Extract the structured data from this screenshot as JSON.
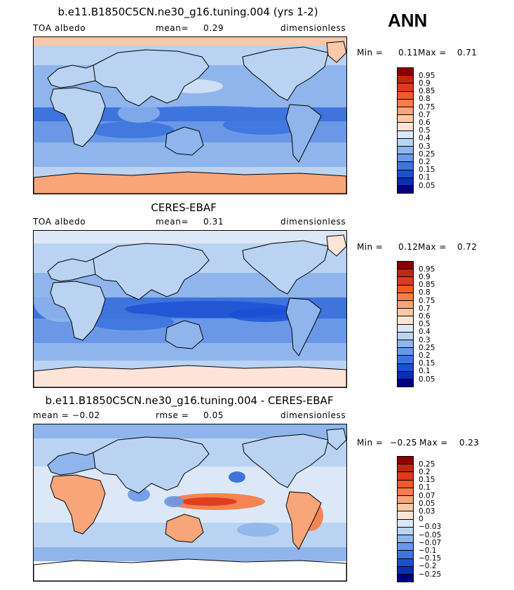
{
  "header": {
    "season": "ANN"
  },
  "panels": [
    {
      "title": "b.e11.B1850C5CN.ne30_g16.tuning.004 (yrs 1-2)",
      "left_label": "TOA albedo",
      "mid_label": "mean=",
      "mid_value": "0.29",
      "units": "dimensionless",
      "min_label": "Min =",
      "min_value": "0.11",
      "max_label": "Max =",
      "max_value": "0.71"
    },
    {
      "title": "CERES-EBAF",
      "left_label": "TOA albedo",
      "mid_label": "mean=",
      "mid_value": "0.31",
      "units": "dimensionless",
      "min_label": "Min =",
      "min_value": "0.12",
      "max_label": "Max =",
      "max_value": "0.72"
    },
    {
      "title": "b.e11.B1850C5CN.ne30_g16.tuning.004 - CERES-EBAF",
      "left_label": "mean = −0.02",
      "mid_label": "rmse =",
      "mid_value": "0.05",
      "units": "dimensionless",
      "min_label": "Min =",
      "min_value": "−0.25",
      "max_label": "Max =",
      "max_value": "0.23"
    }
  ],
  "chart_data": [
    {
      "type": "heatmap",
      "title": "b.e11.B1850C5CN.ne30_g16.tuning.004 (yrs 1-2)",
      "variable": "TOA albedo",
      "units": "dimensionless",
      "mean": 0.29,
      "min": 0.11,
      "max": 0.71,
      "levels": [
        "0.95",
        "0.9",
        "0.85",
        "0.8",
        "0.75",
        "0.7",
        "0.6",
        "0.5",
        "0.4",
        "0.3",
        "0.25",
        "0.2",
        "0.15",
        "0.1",
        "0.05"
      ],
      "colors": [
        "#8b0000",
        "#c0280e",
        "#dd3b1b",
        "#f05a2c",
        "#f57d4b",
        "#f8a579",
        "#fbc8a8",
        "#fde4d6",
        "#dce8f7",
        "#bad3f2",
        "#8fb5ec",
        "#6a98e6",
        "#3f74dd",
        "#1c4fd2",
        "#0a2eb0",
        "#000080"
      ]
    },
    {
      "type": "heatmap",
      "title": "CERES-EBAF",
      "variable": "TOA albedo",
      "units": "dimensionless",
      "mean": 0.31,
      "min": 0.12,
      "max": 0.72,
      "levels": [
        "0.95",
        "0.9",
        "0.85",
        "0.8",
        "0.75",
        "0.7",
        "0.6",
        "0.5",
        "0.4",
        "0.3",
        "0.25",
        "0.2",
        "0.15",
        "0.1",
        "0.05"
      ],
      "colors": [
        "#8b0000",
        "#c0280e",
        "#dd3b1b",
        "#f05a2c",
        "#f57d4b",
        "#f8a579",
        "#fbc8a8",
        "#fde4d6",
        "#dce8f7",
        "#bad3f2",
        "#8fb5ec",
        "#6a98e6",
        "#3f74dd",
        "#1c4fd2",
        "#0a2eb0",
        "#000080"
      ]
    },
    {
      "type": "heatmap",
      "title": "b.e11.B1850C5CN.ne30_g16.tuning.004 - CERES-EBAF",
      "units": "dimensionless",
      "mean": -0.02,
      "rmse": 0.05,
      "min": -0.25,
      "max": 0.23,
      "levels": [
        "0.25",
        "0.2",
        "0.15",
        "0.1",
        "0.07",
        "0.05",
        "0.03",
        "0",
        "−0.03",
        "−0.05",
        "−0.07",
        "−0.1",
        "−0.15",
        "−0.2",
        "−0.25"
      ],
      "colors": [
        "#8b0000",
        "#c0280e",
        "#dd3b1b",
        "#f05a2c",
        "#f57d4b",
        "#f8a579",
        "#fbc8a8",
        "#fde4d6",
        "#dce8f7",
        "#bad3f2",
        "#8fb5ec",
        "#6a98e6",
        "#3f74dd",
        "#1c4fd2",
        "#0a2eb0",
        "#000080"
      ]
    }
  ]
}
